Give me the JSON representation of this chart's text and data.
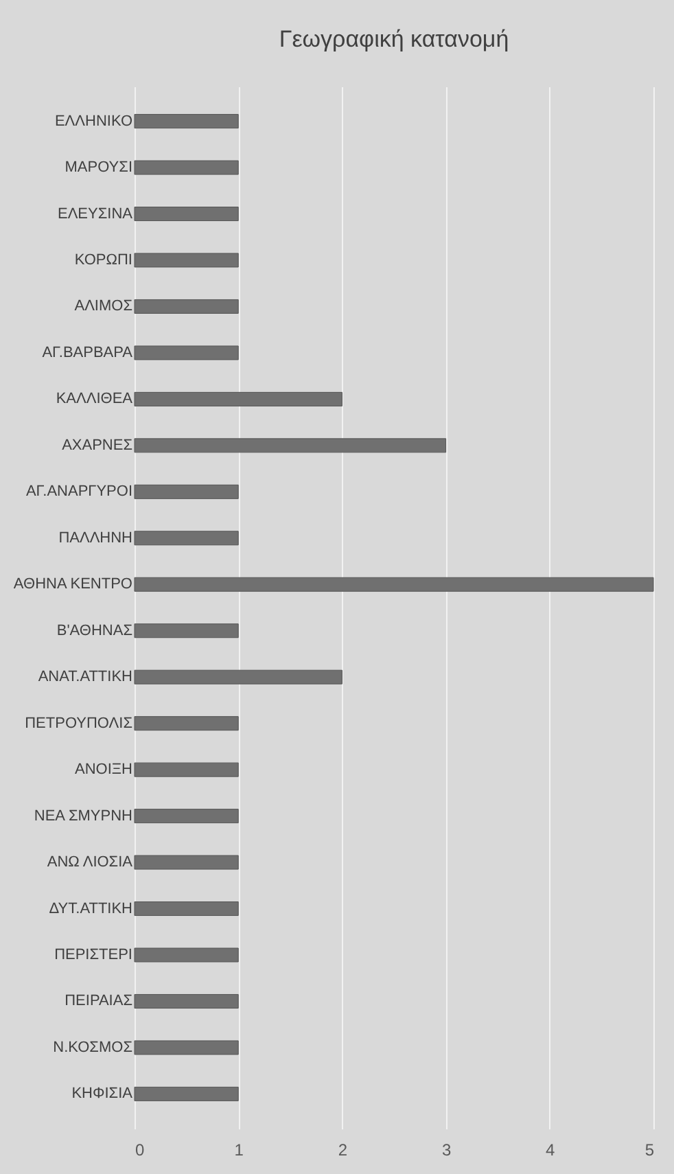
{
  "chart_data": {
    "type": "bar",
    "orientation": "horizontal",
    "title": "Γεωγραφική κατανομή",
    "categories": [
      "ΕΛΛΗΝΙΚΟ",
      "ΜΑΡΟΥΣΙ",
      "ΕΛΕΥΣΙΝΑ",
      "ΚΟΡΩΠΙ",
      "ΑΛΙΜΟΣ",
      "ΑΓ.ΒΑΡΒΑΡΑ",
      "ΚΑΛΛΙΘΕΑ",
      "ΑΧΑΡΝΕΣ",
      "ΑΓ.ΑΝΑΡΓΥΡΟΙ",
      "ΠΑΛΛΗΝΗ",
      "ΑΘΗΝΑ ΚΕΝΤΡΟ",
      "Β'ΑΘΗΝΑΣ",
      "ΑΝΑΤ.ΑΤΤΙΚΗ",
      "ΠΕΤΡΟΥΠΟΛΙΣ",
      "ΑΝΟΙΞΗ",
      "ΝΕΑ ΣΜΥΡΝΗ",
      "ΑΝΩ ΛΙΟΣΙΑ",
      "ΔΥΤ.ΑΤΤΙΚΗ",
      "ΠΕΡΙΣΤΕΡΙ",
      "ΠΕΙΡΑΙΑΣ",
      "Ν.ΚΟΣΜΟΣ",
      "ΚΗΦΙΣΙΑ"
    ],
    "values": [
      1,
      1,
      1,
      1,
      1,
      1,
      2,
      3,
      1,
      1,
      5,
      1,
      2,
      1,
      1,
      1,
      1,
      1,
      1,
      1,
      1,
      1
    ],
    "color": "#707070",
    "xlim": [
      0,
      5
    ],
    "xticks": [
      0,
      1,
      2,
      3,
      4,
      5
    ],
    "grid": "x"
  }
}
